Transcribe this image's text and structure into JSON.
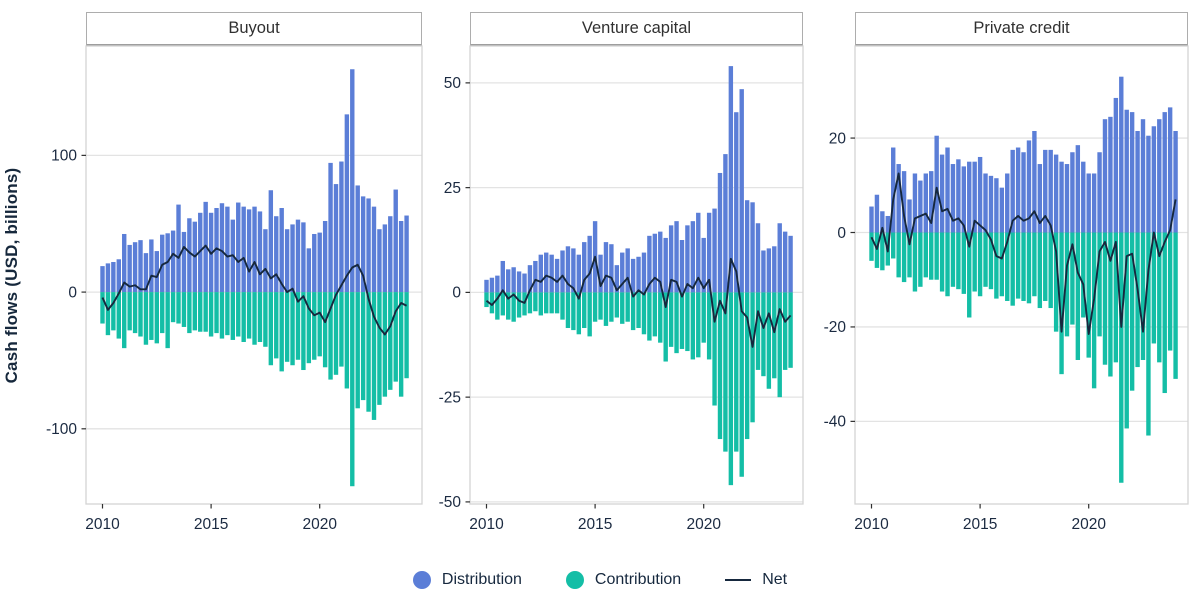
{
  "figure": {
    "ylabel": "Cash flows (USD, billions)",
    "legend": [
      {
        "label": "Distribution",
        "swatch": "dot",
        "color": "#5b7ed7"
      },
      {
        "label": "Contribution",
        "swatch": "dot",
        "color": "#14bea6"
      },
      {
        "label": "Net",
        "swatch": "line",
        "color": "#16283e"
      }
    ],
    "colors": {
      "distribution": "#5b7ed7",
      "contribution": "#14bea6",
      "net": "#16283e",
      "grid": "#e3e3e3",
      "panel_border": "#d4d4d4",
      "strip_border": "#adadad",
      "tick_mark": "#2f2f2f",
      "tick_label": "#1b2a41",
      "facet_title": "#303030",
      "axis_title": "#16283c",
      "background": "#ffffff"
    }
  },
  "chart_data": {
    "type": "bar",
    "overlay": "line",
    "title": "",
    "xlabel": "",
    "ylabel": "Cash flows (USD, billions)",
    "grid": "horizontal",
    "legend_position": "bottom",
    "xticks": [
      "2010",
      "2015",
      "2020"
    ],
    "x_quarters": [
      "2010 Q1",
      "2010 Q2",
      "2010 Q3",
      "2010 Q4",
      "2011 Q1",
      "2011 Q2",
      "2011 Q3",
      "2011 Q4",
      "2012 Q1",
      "2012 Q2",
      "2012 Q3",
      "2012 Q4",
      "2013 Q1",
      "2013 Q2",
      "2013 Q3",
      "2013 Q4",
      "2014 Q1",
      "2014 Q2",
      "2014 Q3",
      "2014 Q4",
      "2015 Q1",
      "2015 Q2",
      "2015 Q3",
      "2015 Q4",
      "2016 Q1",
      "2016 Q2",
      "2016 Q3",
      "2016 Q4",
      "2017 Q1",
      "2017 Q2",
      "2017 Q3",
      "2017 Q4",
      "2018 Q1",
      "2018 Q2",
      "2018 Q3",
      "2018 Q4",
      "2019 Q1",
      "2019 Q2",
      "2019 Q3",
      "2019 Q4",
      "2020 Q1",
      "2020 Q2",
      "2020 Q3",
      "2020 Q4",
      "2021 Q1",
      "2021 Q2",
      "2021 Q3",
      "2021 Q4",
      "2022 Q1",
      "2022 Q2",
      "2022 Q3",
      "2022 Q4",
      "2023 Q1",
      "2023 Q2",
      "2023 Q3",
      "2023 Q4",
      "2024 Q1"
    ],
    "panels": [
      {
        "title": "Buyout",
        "ylim": [
          -155,
          180
        ],
        "yticks": [
          100,
          0,
          -100
        ],
        "series": [
          {
            "name": "Distribution",
            "type": "bar",
            "color": "#5b7ed7",
            "values": [
              19,
              21,
              22,
              24,
              42.5,
              34.5,
              36.5,
              38,
              28.5,
              38.5,
              30,
              42,
              43,
              45,
              64,
              44,
              54,
              51.5,
              58,
              66,
              58,
              61.5,
              65,
              62.5,
              53,
              65.5,
              62.5,
              60.5,
              62.5,
              59,
              46,
              74.5,
              55.5,
              61.5,
              46,
              49.5,
              53,
              51,
              32,
              42.5,
              43.5,
              52,
              94.5,
              79,
              95.5,
              130,
              163,
              78,
              70,
              68.5,
              62.5,
              46,
              49.5,
              55.5,
              75,
              52,
              56
            ]
          },
          {
            "name": "Contribution",
            "type": "bar",
            "color": "#14bea6",
            "values": [
              -23,
              -31.5,
              -28,
              -34,
              -41,
              -28,
              -30,
              -32.5,
              -38.5,
              -35,
              -37.5,
              -30,
              -41,
              -22,
              -23,
              -25.5,
              -30,
              -28,
              -29,
              -29,
              -32.5,
              -30,
              -34,
              -31.5,
              -35,
              -32.5,
              -36.5,
              -34,
              -38.5,
              -36.5,
              -40,
              -53.5,
              -48.5,
              -58,
              -51,
              -53.5,
              -49.5,
              -57,
              -52,
              -49.5,
              -47,
              -55,
              -64,
              -60.5,
              -54.5,
              -70.5,
              -142,
              -85,
              -79,
              -87.5,
              -93.5,
              -82.5,
              -76.5,
              -71.5,
              -65.5,
              -76.5,
              -63
            ]
          },
          {
            "name": "Net",
            "type": "line",
            "color": "#16283e",
            "values": [
              -4,
              -13,
              -8,
              -1,
              7,
              4,
              5,
              2,
              2,
              12,
              11,
              20,
              22,
              28,
              25,
              33,
              29,
              26,
              30,
              34,
              28,
              32,
              30,
              26,
              27,
              22,
              25,
              15,
              22,
              13,
              17,
              10,
              13,
              6,
              0,
              2.5,
              -7,
              -3,
              -12,
              -17,
              -15,
              -22,
              -12,
              -2,
              5,
              12,
              18,
              20,
              12,
              -5,
              -18,
              -26,
              -31,
              -25,
              -14,
              -8,
              -10
            ]
          }
        ]
      },
      {
        "title": "Venture capital",
        "ylim": [
          -50.5,
          58.8
        ],
        "yticks": [
          50,
          25,
          0,
          -25,
          -50
        ],
        "series": [
          {
            "name": "Distribution",
            "type": "bar",
            "color": "#5b7ed7",
            "values": [
              3,
              3.5,
              4,
              7.5,
              5.5,
              6,
              5,
              4.5,
              6.5,
              7.5,
              9,
              9.5,
              9,
              8,
              10,
              11,
              10.5,
              9,
              12,
              13.5,
              17,
              9,
              12,
              11.5,
              6.5,
              9.5,
              10.5,
              8,
              8.5,
              9.5,
              13.5,
              14,
              14.5,
              13,
              16,
              17,
              12.5,
              16,
              17,
              19,
              13,
              19,
              20,
              28.5,
              33,
              54,
              43,
              48.5,
              22,
              21.5,
              16.5,
              10,
              10.5,
              11,
              16.5,
              14.5,
              13.5
            ]
          },
          {
            "name": "Contribution",
            "type": "bar",
            "color": "#14bea6",
            "values": [
              -3.5,
              -5,
              -6.5,
              -5.5,
              -6.5,
              -7,
              -6,
              -5.5,
              -5,
              -4.5,
              -5.5,
              -5,
              -5,
              -5,
              -6.5,
              -8.5,
              -9,
              -10,
              -8.5,
              -10.5,
              -7,
              -6.5,
              -8,
              -7,
              -6,
              -7.5,
              -7,
              -9,
              -8.5,
              -10,
              -11.5,
              -10.5,
              -12,
              -16.5,
              -13,
              -14.5,
              -13.5,
              -14,
              -16,
              -15.5,
              -12,
              -16,
              -27,
              -35,
              -38,
              -46,
              -38,
              -44,
              -35,
              -31,
              -18.5,
              -20,
              -23,
              -20.5,
              -25,
              -18.5,
              -18
            ]
          },
          {
            "name": "Net",
            "type": "line",
            "color": "#16283e",
            "values": [
              -2,
              -3,
              -1.5,
              0.5,
              -1.5,
              -0.5,
              -2,
              -2.5,
              0.5,
              3,
              2.5,
              4,
              3.5,
              2.5,
              4,
              2,
              1,
              -1.5,
              3,
              4.5,
              8.5,
              1.5,
              4,
              3.5,
              0.5,
              2,
              3.5,
              -1,
              0.5,
              -0.5,
              2,
              3.5,
              2.5,
              -3.5,
              3,
              2.5,
              -1,
              2,
              1,
              3.5,
              1,
              3,
              -7,
              -2,
              -5,
              8,
              5,
              -4.5,
              -6,
              -13,
              -4.5,
              -8.5,
              -5,
              -9.5,
              -4,
              -7,
              -5.5
            ]
          }
        ]
      },
      {
        "title": "Private credit",
        "ylim": [
          -57.5,
          39.5
        ],
        "yticks": [
          20,
          0,
          -20,
          -40
        ],
        "series": [
          {
            "name": "Distribution",
            "type": "bar",
            "color": "#5b7ed7",
            "values": [
              5.5,
              8,
              4.5,
              3.5,
              18,
              14.5,
              13,
              7,
              12.5,
              11,
              12.5,
              13,
              20.5,
              16.5,
              18,
              14.5,
              15.5,
              14,
              15,
              15,
              16,
              12.5,
              12,
              11.5,
              9.5,
              12.5,
              17.5,
              18,
              17,
              19.5,
              21.5,
              14.5,
              17.5,
              17.5,
              16.5,
              15,
              14.5,
              17,
              18.5,
              15,
              12.5,
              12.5,
              17,
              24,
              24.5,
              28.5,
              33,
              26,
              25.5,
              21.5,
              24,
              20.5,
              22.5,
              24,
              25.5,
              26.5,
              21.5
            ]
          },
          {
            "name": "Contribution",
            "type": "bar",
            "color": "#14bea6",
            "values": [
              -6,
              -7.5,
              -8,
              -7,
              -5.5,
              -9.5,
              -10.5,
              -9.5,
              -12.5,
              -11.5,
              -9.5,
              -10,
              -10,
              -12.5,
              -13.5,
              -11.5,
              -12,
              -13,
              -18,
              -12.5,
              -13.5,
              -11.5,
              -12,
              -14,
              -13.5,
              -14.5,
              -15.5,
              -14,
              -14.5,
              -15,
              -13.5,
              -16,
              -14.5,
              -16,
              -21,
              -30,
              -22,
              -19.5,
              -27,
              -18,
              -26.5,
              -33,
              -22,
              -28,
              -30.5,
              -27.5,
              -53,
              -41.5,
              -33.5,
              -28.5,
              -27,
              -43,
              -23.5,
              -27.5,
              -34,
              -25,
              -31
            ]
          },
          {
            "name": "Net",
            "type": "line",
            "color": "#16283e",
            "values": [
              -1,
              -3.5,
              1,
              -4,
              7,
              12.5,
              3.5,
              -2.5,
              3,
              3.5,
              4,
              2,
              9.5,
              4.5,
              5,
              2.5,
              3,
              1.5,
              -3,
              2.5,
              1.5,
              0.5,
              -1.5,
              -5,
              -5.5,
              -2,
              2.5,
              3.5,
              2.5,
              3,
              4.5,
              2,
              3.5,
              1.5,
              -4,
              -21,
              -7,
              -2.5,
              -8.5,
              -11,
              -21.5,
              -14,
              -4,
              -2,
              -6,
              -2,
              -20,
              -5,
              -4.5,
              -12,
              -21,
              -8,
              0,
              -5,
              -2,
              0.5,
              7
            ]
          }
        ]
      }
    ]
  }
}
